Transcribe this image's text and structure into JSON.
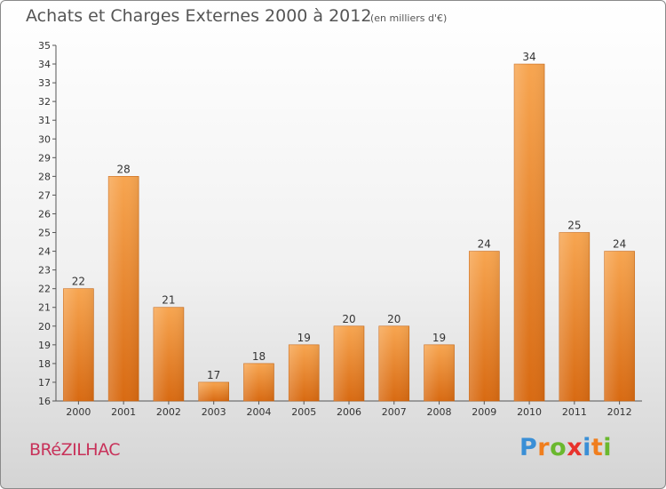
{
  "chart_data": {
    "type": "bar",
    "title": "Achats et Charges Externes 2000 à 2012",
    "subtitle": "(en milliers d'€)",
    "xlabel": "",
    "ylabel": "",
    "categories": [
      "2000",
      "2001",
      "2002",
      "2003",
      "2004",
      "2005",
      "2006",
      "2007",
      "2008",
      "2009",
      "2010",
      "2011",
      "2012"
    ],
    "values": [
      22,
      28,
      21,
      17,
      18,
      19,
      20,
      20,
      19,
      24,
      34,
      25,
      24
    ],
    "ylim": [
      16,
      35
    ],
    "yticks": [
      16,
      17,
      18,
      19,
      20,
      21,
      22,
      23,
      24,
      25,
      26,
      27,
      28,
      29,
      30,
      31,
      32,
      33,
      34,
      35
    ],
    "grid": false,
    "legend": "none",
    "bar_color": "#f08c2e"
  },
  "footer": {
    "commune": "BRéZILHAC",
    "logo": [
      "P",
      "r",
      "o",
      "x",
      "i",
      "t",
      "i"
    ],
    "logo_colors": [
      "#3a8fd6",
      "#f07e1e",
      "#6ab82e",
      "#e8322c",
      "#3a8fd6",
      "#f07e1e",
      "#6ab82e"
    ]
  }
}
